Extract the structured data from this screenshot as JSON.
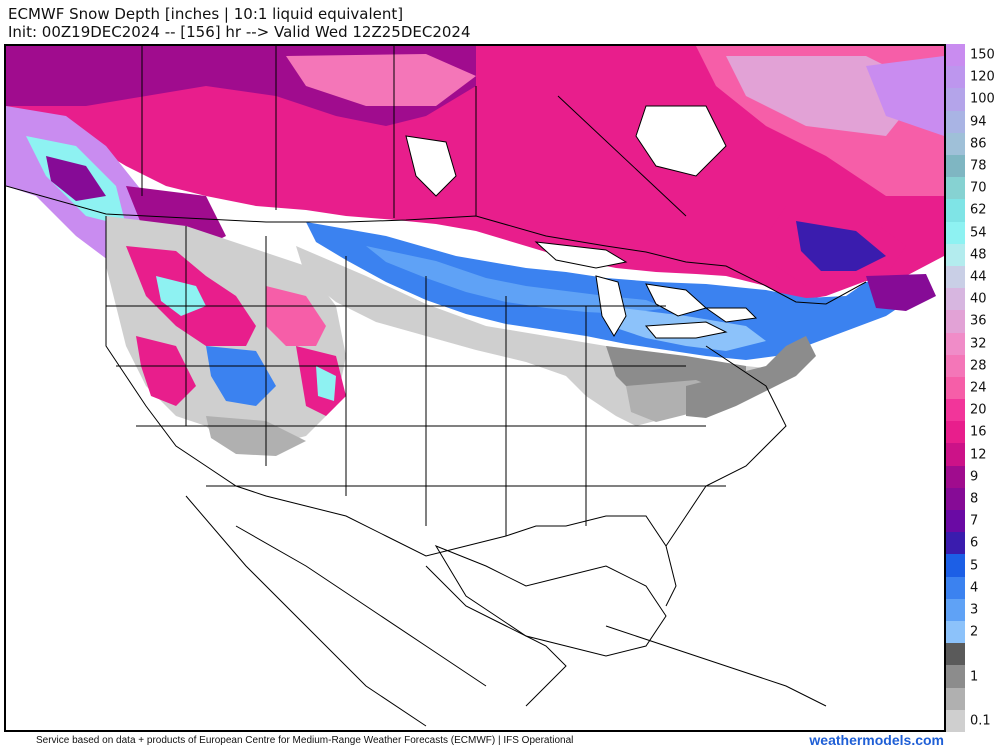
{
  "title_line1": "ECMWF Snow Depth [inches | 10:1 liquid equivalent]",
  "title_line2": "Init: 00Z19DEC2024 -- [156] hr --> Valid Wed 12Z25DEC2024",
  "footer": "Service based on data + products of European Centre for Medium-Range Weather Forecasts (ECMWF) | IFS Operational",
  "brand": "weathermodels.com",
  "legend": [
    {
      "label": "150",
      "color": "#c98cf0"
    },
    {
      "label": "120",
      "color": "#bd96ee"
    },
    {
      "label": "100",
      "color": "#b4a4ea"
    },
    {
      "label": "94",
      "color": "#a9b4e4"
    },
    {
      "label": "86",
      "color": "#9fc0d8"
    },
    {
      "label": "78",
      "color": "#7fb6c2"
    },
    {
      "label": "70",
      "color": "#86d2d2"
    },
    {
      "label": "62",
      "color": "#7fe4e6"
    },
    {
      "label": "54",
      "color": "#8ef2f2"
    },
    {
      "label": "48",
      "color": "#b3ecee"
    },
    {
      "label": "44",
      "color": "#c9cfe6"
    },
    {
      "label": "40",
      "color": "#d7b6e0"
    },
    {
      "label": "36",
      "color": "#e2a2d6"
    },
    {
      "label": "32",
      "color": "#f08cc8"
    },
    {
      "label": "28",
      "color": "#f476b8"
    },
    {
      "label": "24",
      "color": "#f65ea8"
    },
    {
      "label": "20",
      "color": "#f2359a"
    },
    {
      "label": "16",
      "color": "#e81e8c"
    },
    {
      "label": "12",
      "color": "#cc1288"
    },
    {
      "label": "9",
      "color": "#a00c8e"
    },
    {
      "label": "8",
      "color": "#860b96"
    },
    {
      "label": "7",
      "color": "#6a0aa4"
    },
    {
      "label": "6",
      "color": "#3a1cae"
    },
    {
      "label": "5",
      "color": "#1c5fe6"
    },
    {
      "label": "4",
      "color": "#3b82f0"
    },
    {
      "label": "3",
      "color": "#5fa2f6"
    },
    {
      "label": "2",
      "color": "#8cc2fa"
    },
    {
      "label": "",
      "color": "#5a5a5a"
    },
    {
      "label": "1",
      "color": "#8c8c8c"
    },
    {
      "label": "",
      "color": "#b0b0b0"
    },
    {
      "label": "0.1",
      "color": "#cfcfcf"
    }
  ]
}
